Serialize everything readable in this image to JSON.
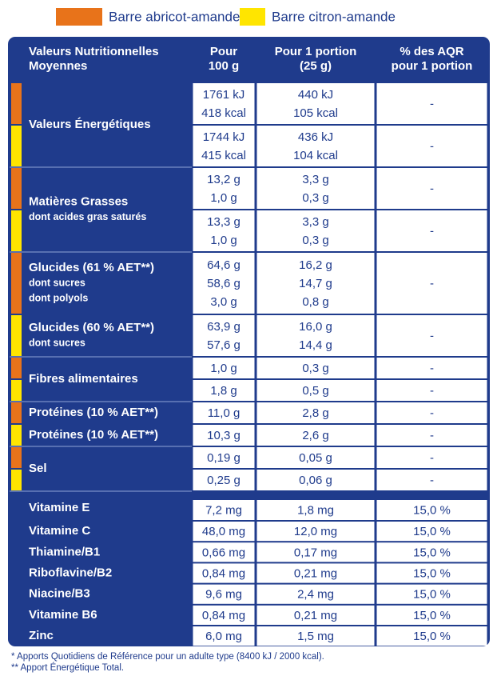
{
  "legend": {
    "items": [
      {
        "text": "Barre abricot-amande",
        "color": "#e8731a"
      },
      {
        "text": "Barre citron-amande",
        "color": "#ffe500"
      }
    ]
  },
  "table": {
    "header": [
      [
        "Valeurs Nutritionnelles",
        "Moyennes"
      ],
      [
        "Pour",
        "100 g"
      ],
      [
        "Pour 1 portion",
        "(25 g)"
      ],
      [
        "% des AQR",
        "pour 1 portion"
      ]
    ],
    "nutrients": [
      {
        "label": [
          "Valeurs Énergétiques"
        ],
        "rows": [
          {
            "per100": [
              "1761 kJ",
              "418 kcal"
            ],
            "portion": [
              "440 kJ",
              "105 kcal"
            ],
            "aqr": "-"
          },
          {
            "per100": [
              "1744 kJ",
              "415 kcal"
            ],
            "portion": [
              "436 kJ",
              "104 kcal"
            ],
            "aqr": "-"
          }
        ]
      },
      {
        "label": [
          "Matières Grasses",
          "dont acides gras saturés"
        ],
        "rows": [
          {
            "per100": [
              "13,2 g",
              "1,0 g"
            ],
            "portion": [
              "3,3 g",
              "0,3 g"
            ],
            "aqr": "-"
          },
          {
            "per100": [
              "13,3 g",
              "1,0 g"
            ],
            "portion": [
              "3,3 g",
              "0,3 g"
            ],
            "aqr": "-"
          }
        ]
      },
      {
        "rows": [
          {
            "label": [
              "Glucides (61 % AET**)",
              "dont sucres",
              "dont polyols"
            ],
            "per100": [
              "64,6 g",
              "58,6 g",
              "3,0 g"
            ],
            "portion": [
              "16,2 g",
              "14,7 g",
              "0,8 g"
            ],
            "aqr": "-"
          },
          {
            "label": [
              "Glucides (60 % AET**)",
              "dont sucres"
            ],
            "per100": [
              "63,9 g",
              "57,6 g"
            ],
            "portion": [
              "16,0 g",
              "14,4 g"
            ],
            "aqr": "-"
          }
        ]
      },
      {
        "label": [
          "Fibres alimentaires"
        ],
        "rows": [
          {
            "per100": [
              "1,0 g"
            ],
            "portion": [
              "0,3 g"
            ],
            "aqr": "-"
          },
          {
            "per100": [
              "1,8 g"
            ],
            "portion": [
              "0,5 g"
            ],
            "aqr": "-"
          }
        ]
      },
      {
        "rows": [
          {
            "label": [
              "Protéines (10 % AET**)"
            ],
            "per100": [
              "11,0 g"
            ],
            "portion": [
              "2,8 g"
            ],
            "aqr": "-"
          },
          {
            "label": [
              "Protéines (10 % AET**)"
            ],
            "per100": [
              "10,3 g"
            ],
            "portion": [
              "2,6 g"
            ],
            "aqr": "-"
          }
        ]
      },
      {
        "label": [
          "Sel"
        ],
        "rows": [
          {
            "per100": [
              "0,19 g"
            ],
            "portion": [
              "0,05 g"
            ],
            "aqr": "-"
          },
          {
            "per100": [
              "0,25 g"
            ],
            "portion": [
              "0,06 g"
            ],
            "aqr": "-"
          }
        ]
      }
    ],
    "vitamins": [
      [
        "Vitamine E",
        "7,2 mg",
        "1,8 mg",
        "15,0 %"
      ],
      [
        "Vitamine C",
        "48,0 mg",
        "12,0 mg",
        "15,0 %"
      ],
      [
        "Thiamine/B1",
        "0,66 mg",
        "0,17 mg",
        "15,0 %"
      ],
      [
        "Riboflavine/B2",
        "0,84 mg",
        "0,21 mg",
        "15,0 %"
      ],
      [
        "Niacine/B3",
        "9,6 mg",
        "2,4 mg",
        "15,0 %"
      ],
      [
        "Vitamine B6",
        "0,84 mg",
        "0,21 mg",
        "15,0 %"
      ],
      [
        "Zinc",
        "6,0 mg",
        "1,5 mg",
        "15,0 %"
      ]
    ]
  },
  "footnotes": [
    "* Apports Quotidiens de Référence pour un adulte type (8400 kJ / 2000 kcal).",
    "** Apport Énergétique Total."
  ]
}
